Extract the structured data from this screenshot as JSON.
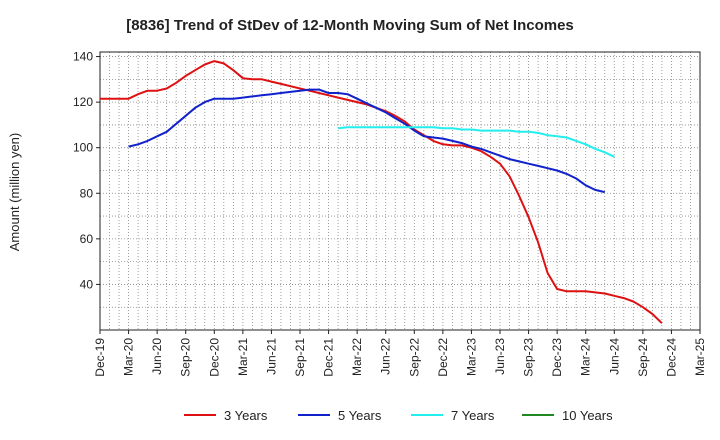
{
  "chart_data": {
    "type": "line",
    "title": "[8836]  Trend of StDev of 12-Month Moving Sum of Net Incomes",
    "ylabel": "Amount (million yen)",
    "xlabel": "",
    "ylim": [
      20,
      142
    ],
    "yticks": [
      40,
      60,
      80,
      100,
      120,
      140
    ],
    "x_tick_labels": [
      "Dec-19",
      "Mar-20",
      "Jun-20",
      "Sep-20",
      "Dec-20",
      "Mar-21",
      "Jun-21",
      "Sep-21",
      "Dec-21",
      "Mar-22",
      "Jun-22",
      "Sep-22",
      "Dec-22",
      "Mar-23",
      "Jun-23",
      "Sep-23",
      "Dec-23",
      "Mar-24",
      "Jun-24",
      "Sep-24",
      "Dec-24",
      "Mar-25"
    ],
    "grid": true,
    "legend_position": "bottom",
    "series": [
      {
        "name": "3 Years",
        "color": "#dd1111",
        "values": [
          121.5,
          121.5,
          121.5,
          121.5,
          123.5,
          125,
          125,
          126,
          128.5,
          131.5,
          134,
          136.5,
          138,
          137,
          134,
          130.5,
          130,
          130,
          129,
          128,
          127,
          126,
          125,
          124,
          123,
          122,
          121,
          120,
          119,
          117.5,
          116,
          114,
          111.5,
          108,
          105.5,
          103,
          101.5,
          101,
          101,
          100,
          98.5,
          96,
          93,
          87.5,
          79,
          69.5,
          58.5,
          45,
          38,
          37,
          37,
          37,
          36.5,
          36,
          35,
          34,
          32.5,
          30,
          27,
          23
        ]
      },
      {
        "name": "5 Years",
        "color": "#1122cc",
        "values": [
          null,
          null,
          null,
          100.5,
          101.5,
          103,
          105,
          107,
          110.5,
          114,
          117.5,
          120,
          121.5,
          121.5,
          121.5,
          122,
          122.5,
          123,
          123.5,
          124,
          124.5,
          125,
          125.5,
          125.5,
          124,
          124,
          123.5,
          121.5,
          119.5,
          117.5,
          115.5,
          113,
          110.5,
          107.5,
          105,
          104.5,
          104,
          103,
          102,
          100.5,
          99.5,
          98,
          96.5,
          95,
          94,
          93,
          92,
          91,
          90,
          88.5,
          86.5,
          83.5,
          81.5,
          80.5
        ]
      },
      {
        "name": "7 Years",
        "color": "#22eeee",
        "values": [
          null,
          null,
          null,
          null,
          null,
          null,
          null,
          null,
          null,
          null,
          null,
          null,
          null,
          null,
          null,
          null,
          null,
          null,
          null,
          null,
          null,
          null,
          null,
          null,
          null,
          108.5,
          109,
          109,
          109,
          109,
          109,
          109,
          109,
          109,
          109,
          109,
          108.5,
          108.5,
          108,
          108,
          107.5,
          107.5,
          107.5,
          107.5,
          107,
          107,
          106.5,
          105.5,
          105,
          104.5,
          103,
          101.5,
          99.5,
          98,
          96
        ]
      },
      {
        "name": "10 Years",
        "color": "#228822",
        "values": []
      }
    ]
  }
}
